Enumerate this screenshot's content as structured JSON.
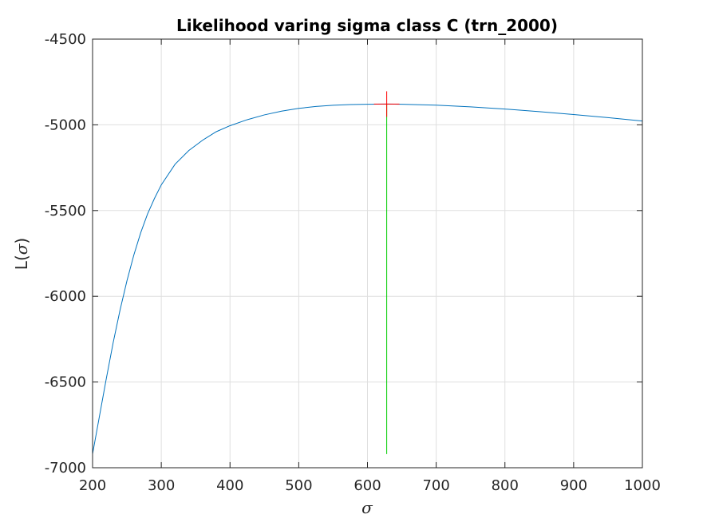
{
  "chart_data": {
    "type": "line",
    "title": "Likelihood varing sigma class C (trn_2000)",
    "xlabel": "σ",
    "ylabel_prefix": "L(",
    "ylabel_symbol": "σ",
    "ylabel_suffix": ")",
    "xlim": [
      200,
      1000
    ],
    "ylim": [
      -7000,
      -4500
    ],
    "xticks": [
      200,
      300,
      400,
      500,
      600,
      700,
      800,
      900,
      1000
    ],
    "xtick_labels": [
      "200",
      "300",
      "400",
      "500",
      "600",
      "700",
      "800",
      "900",
      "1000"
    ],
    "yticks": [
      -4500,
      -5000,
      -5500,
      -6000,
      -6500,
      -7000
    ],
    "ytick_labels": [
      "-4500",
      "-5000",
      "-5500",
      "-6000",
      "-6500",
      "-7000"
    ],
    "grid": true,
    "series": [
      {
        "color": "#0072BD",
        "x": [
          200,
          210,
          220,
          230,
          240,
          250,
          260,
          270,
          280,
          290,
          300,
          320,
          340,
          360,
          380,
          400,
          425,
          450,
          475,
          500,
          525,
          550,
          575,
          600,
          628,
          650,
          700,
          750,
          800,
          850,
          900,
          950,
          1000
        ],
        "y": [
          -6920,
          -6700,
          -6480,
          -6270,
          -6080,
          -5910,
          -5760,
          -5630,
          -5520,
          -5430,
          -5350,
          -5230,
          -5150,
          -5090,
          -5040,
          -5005,
          -4970,
          -4942,
          -4920,
          -4904,
          -4893,
          -4886,
          -4882,
          -4880,
          -4879,
          -4880,
          -4885,
          -4895,
          -4908,
          -4923,
          -4940,
          -4958,
          -4978
        ]
      }
    ],
    "max_marker": {
      "x": 628,
      "y": -4879,
      "color": "#ff0000",
      "marker": "plus"
    },
    "vline": {
      "x": 628,
      "y_from": -6920,
      "y_to": -4879,
      "color": "#00cc00"
    }
  }
}
